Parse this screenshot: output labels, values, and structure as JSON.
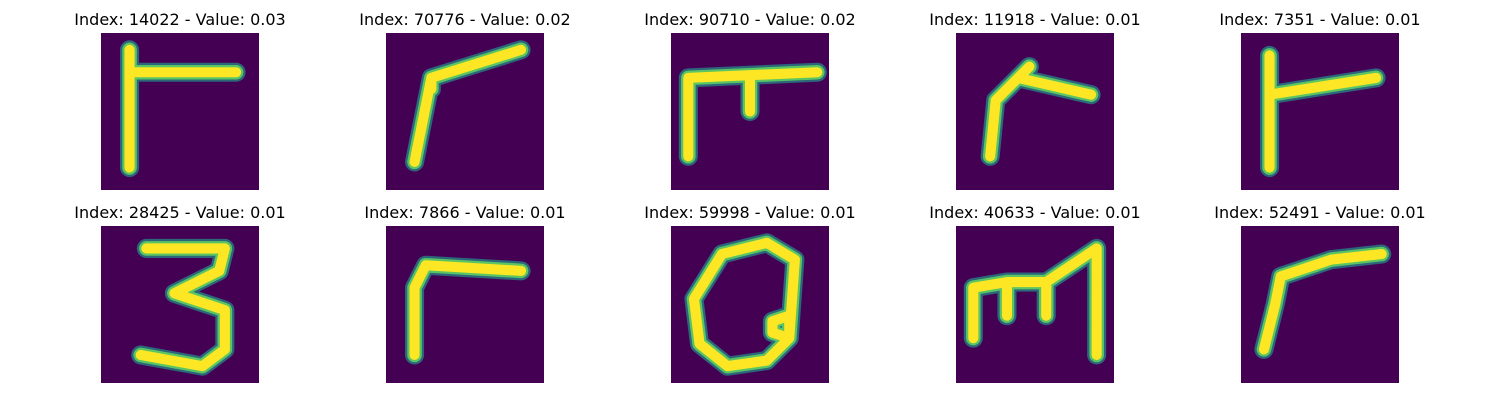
{
  "panels": [
    {
      "title": "Index: 14022 - Value: 0.03",
      "glyph": "r-tall"
    },
    {
      "title": "Index: 70776 - Value: 0.02",
      "glyph": "r-slant"
    },
    {
      "title": "Index: 90710 - Value: 0.02",
      "glyph": "pi"
    },
    {
      "title": "Index: 11918 - Value: 0.01",
      "glyph": "r-small"
    },
    {
      "title": "Index: 7351 - Value: 0.01",
      "glyph": "r-tall"
    },
    {
      "title": "Index: 28425 - Value: 0.01",
      "glyph": "three"
    },
    {
      "title": "Index: 7866 - Value: 0.01",
      "glyph": "r"
    },
    {
      "title": "Index: 59998 - Value: 0.01",
      "glyph": "q"
    },
    {
      "title": "Index: 40633 - Value: 0.01",
      "glyph": "m"
    },
    {
      "title": "Index: 52491 - Value: 0.01",
      "glyph": "r-curve"
    }
  ],
  "colors": {
    "background": "#440154",
    "stroke_core": "#fde725",
    "stroke_edge": "#5ec962",
    "stroke_halo": "#21918c"
  }
}
